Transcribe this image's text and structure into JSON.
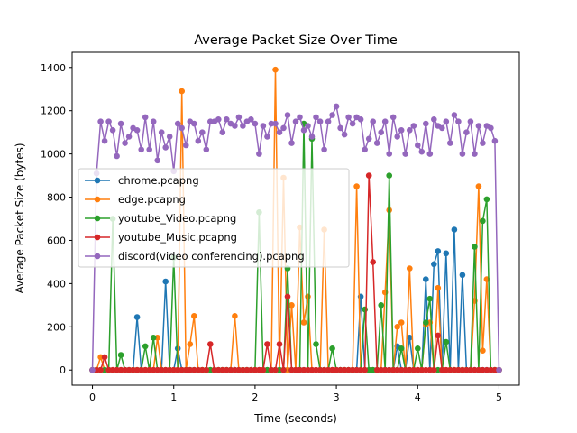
{
  "chart_data": {
    "type": "line",
    "title": "Average Packet Size Over Time",
    "xlabel": "Time (seconds)",
    "ylabel": "Average Packet Size (bytes)",
    "xlim": [
      -0.25,
      5.25
    ],
    "ylim": [
      -70,
      1470
    ],
    "x_ticks": [
      0,
      1,
      2,
      3,
      4,
      5
    ],
    "y_ticks": [
      0,
      200,
      400,
      600,
      800,
      1000,
      1200,
      1400
    ],
    "grid": false,
    "legend_position": "center-left",
    "x": [
      0.0,
      0.05,
      0.1,
      0.15,
      0.2,
      0.25,
      0.3,
      0.35,
      0.4,
      0.45,
      0.5,
      0.55,
      0.6,
      0.65,
      0.7,
      0.75,
      0.8,
      0.85,
      0.9,
      0.95,
      1.0,
      1.05,
      1.1,
      1.15,
      1.2,
      1.25,
      1.3,
      1.35,
      1.4,
      1.45,
      1.5,
      1.55,
      1.6,
      1.65,
      1.7,
      1.75,
      1.8,
      1.85,
      1.9,
      1.95,
      2.0,
      2.05,
      2.1,
      2.15,
      2.2,
      2.25,
      2.3,
      2.35,
      2.4,
      2.45,
      2.5,
      2.55,
      2.6,
      2.65,
      2.7,
      2.75,
      2.8,
      2.85,
      2.9,
      2.95,
      3.0,
      3.05,
      3.1,
      3.15,
      3.2,
      3.25,
      3.3,
      3.35,
      3.4,
      3.45,
      3.5,
      3.55,
      3.6,
      3.65,
      3.7,
      3.75,
      3.8,
      3.85,
      3.9,
      3.95,
      4.0,
      4.05,
      4.1,
      4.15,
      4.2,
      4.25,
      4.3,
      4.35,
      4.4,
      4.45,
      4.5,
      4.55,
      4.6,
      4.65,
      4.7,
      4.75,
      4.8,
      4.85,
      4.9,
      4.95,
      5.0
    ],
    "series": [
      {
        "name": "chrome.pcapng",
        "color": "#1f77b4",
        "values": [
          0,
          0,
          0,
          0,
          0,
          0,
          0,
          0,
          0,
          0,
          0,
          245,
          0,
          0,
          0,
          0,
          0,
          0,
          410,
          0,
          0,
          100,
          0,
          0,
          0,
          0,
          0,
          0,
          0,
          0,
          0,
          0,
          0,
          0,
          0,
          0,
          0,
          0,
          0,
          0,
          0,
          0,
          0,
          0,
          0,
          0,
          0,
          0,
          0,
          0,
          0,
          0,
          0,
          0,
          0,
          0,
          0,
          0,
          0,
          0,
          0,
          0,
          0,
          0,
          0,
          0,
          340,
          0,
          0,
          0,
          0,
          0,
          0,
          0,
          0,
          110,
          0,
          0,
          150,
          0,
          0,
          0,
          420,
          0,
          490,
          550,
          0,
          540,
          0,
          650,
          0,
          440,
          0,
          0,
          0,
          0,
          0,
          0,
          0,
          0,
          0
        ]
      },
      {
        "name": "edge.pcapng",
        "color": "#ff7f0e",
        "values": [
          0,
          0,
          60,
          0,
          0,
          0,
          0,
          0,
          0,
          0,
          0,
          0,
          0,
          0,
          0,
          0,
          150,
          0,
          0,
          0,
          0,
          0,
          1290,
          0,
          120,
          250,
          0,
          0,
          0,
          0,
          0,
          0,
          0,
          0,
          0,
          250,
          0,
          0,
          0,
          0,
          0,
          0,
          0,
          0,
          0,
          1390,
          0,
          890,
          0,
          300,
          0,
          660,
          220,
          340,
          0,
          0,
          0,
          650,
          0,
          0,
          0,
          0,
          0,
          0,
          0,
          850,
          0,
          0,
          0,
          0,
          0,
          0,
          360,
          740,
          0,
          200,
          220,
          0,
          470,
          0,
          0,
          0,
          210,
          220,
          0,
          380,
          0,
          0,
          0,
          0,
          0,
          0,
          0,
          0,
          320,
          850,
          90,
          420,
          0,
          0,
          0
        ]
      },
      {
        "name": "youtube_Video.pcapng",
        "color": "#2ca02c",
        "values": [
          0,
          0,
          0,
          0,
          0,
          700,
          0,
          70,
          0,
          0,
          0,
          0,
          0,
          110,
          0,
          150,
          0,
          0,
          0,
          0,
          520,
          0,
          0,
          0,
          0,
          0,
          0,
          0,
          0,
          0,
          0,
          0,
          0,
          0,
          0,
          0,
          0,
          0,
          0,
          0,
          0,
          730,
          0,
          0,
          0,
          0,
          0,
          0,
          470,
          0,
          0,
          0,
          1140,
          0,
          1070,
          120,
          0,
          0,
          0,
          100,
          0,
          0,
          0,
          0,
          0,
          0,
          0,
          280,
          0,
          0,
          0,
          300,
          0,
          900,
          0,
          0,
          100,
          0,
          0,
          0,
          100,
          0,
          220,
          330,
          0,
          0,
          0,
          130,
          0,
          0,
          0,
          0,
          0,
          0,
          570,
          0,
          690,
          790,
          0,
          0,
          0
        ]
      },
      {
        "name": "youtube_Music.pcapng",
        "color": "#d62728",
        "values": [
          0,
          0,
          0,
          60,
          0,
          0,
          0,
          0,
          0,
          0,
          0,
          0,
          0,
          0,
          0,
          0,
          0,
          0,
          0,
          0,
          0,
          0,
          0,
          0,
          0,
          0,
          0,
          0,
          0,
          120,
          0,
          0,
          0,
          0,
          0,
          0,
          0,
          0,
          0,
          0,
          0,
          0,
          0,
          120,
          0,
          0,
          120,
          0,
          340,
          0,
          0,
          0,
          0,
          0,
          0,
          0,
          0,
          0,
          0,
          0,
          0,
          0,
          0,
          0,
          0,
          0,
          0,
          0,
          900,
          500,
          0,
          0,
          0,
          0,
          0,
          0,
          0,
          0,
          0,
          0,
          0,
          0,
          0,
          0,
          0,
          160,
          0,
          0,
          0,
          0,
          0,
          0,
          0,
          0,
          0,
          0,
          0,
          0,
          0,
          0,
          0
        ]
      },
      {
        "name": "discord(video conferencing).pcapng",
        "color": "#9467bd",
        "values": [
          0,
          910,
          1150,
          1060,
          1150,
          1110,
          990,
          1140,
          1050,
          1080,
          1120,
          1110,
          1020,
          1170,
          1020,
          1150,
          970,
          1100,
          1030,
          1080,
          920,
          1140,
          1120,
          1040,
          1150,
          1140,
          1060,
          1100,
          1020,
          1150,
          1150,
          1160,
          1100,
          1160,
          1140,
          1130,
          1170,
          1130,
          1150,
          1160,
          1140,
          1000,
          1130,
          1080,
          1140,
          1140,
          1100,
          1120,
          1180,
          1050,
          1150,
          1170,
          1110,
          1130,
          1080,
          1170,
          1150,
          1020,
          1150,
          1180,
          1220,
          1120,
          1090,
          1170,
          1140,
          1170,
          1160,
          1020,
          1070,
          1150,
          1050,
          1100,
          1150,
          1000,
          1170,
          1080,
          1110,
          1000,
          1110,
          1130,
          1040,
          1010,
          1140,
          1000,
          1160,
          1130,
          1120,
          1150,
          1050,
          1180,
          1150,
          1000,
          1100,
          1150,
          1000,
          1130,
          1050,
          1130,
          1120,
          1060,
          0
        ]
      }
    ]
  }
}
